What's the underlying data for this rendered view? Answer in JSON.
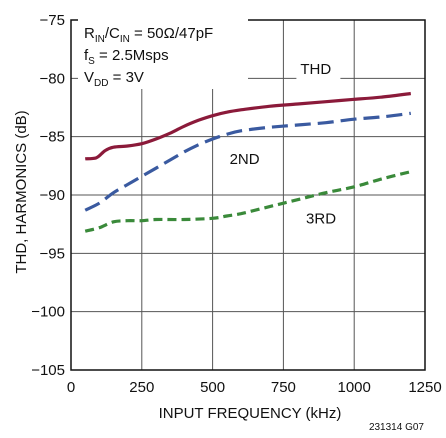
{
  "chart_data": {
    "type": "line",
    "title": "",
    "xlabel": "INPUT FREQUENCY (kHz)",
    "ylabel": "THD, HARMONICS (dB)",
    "xlim": [
      0,
      1250
    ],
    "ylim": [
      -105,
      -75
    ],
    "xticks": [
      0,
      250,
      500,
      750,
      1000,
      1250
    ],
    "yticks": [
      -105,
      -100,
      -95,
      -90,
      -85,
      -80,
      -75
    ],
    "xtick_labels": [
      "0",
      "250",
      "500",
      "750",
      "1000",
      "1250"
    ],
    "ytick_labels": [
      "−105",
      "−100",
      "−95",
      "−90",
      "−85",
      "−80",
      "−75"
    ],
    "grid": true,
    "conditions": {
      "line1": {
        "r": "R",
        "r_sub": "IN",
        "slash": "/C",
        "c_sub": "IN",
        "rest": " = 50Ω/47pF"
      },
      "line2": {
        "f": "f",
        "f_sub": "S",
        "rest": " = 2.5Msps"
      },
      "line3": {
        "v": "V",
        "v_sub": "DD",
        "rest": " = 3V"
      }
    },
    "figure_code": "231314 G07",
    "series": [
      {
        "name": "THD",
        "color": "#8b1a3a",
        "style": "solid",
        "x": [
          50,
          90,
          120,
          150,
          200,
          250,
          300,
          350,
          400,
          450,
          500,
          550,
          600,
          700,
          800,
          900,
          1000,
          1100,
          1200
        ],
        "y": [
          -86.9,
          -86.8,
          -86.2,
          -85.9,
          -85.8,
          -85.6,
          -85.2,
          -84.7,
          -84.1,
          -83.6,
          -83.2,
          -82.9,
          -82.7,
          -82.4,
          -82.2,
          -82.0,
          -81.8,
          -81.6,
          -81.3
        ]
      },
      {
        "name": "2ND",
        "color": "#3a5aa0",
        "style": "dashed",
        "x": [
          50,
          100,
          150,
          200,
          250,
          300,
          350,
          400,
          450,
          500,
          550,
          600,
          700,
          800,
          900,
          1000,
          1100,
          1200
        ],
        "y": [
          -91.3,
          -90.7,
          -89.8,
          -89.1,
          -88.4,
          -87.7,
          -87.0,
          -86.3,
          -85.7,
          -85.2,
          -84.8,
          -84.5,
          -84.2,
          -84.0,
          -83.8,
          -83.5,
          -83.3,
          -83.0
        ]
      },
      {
        "name": "3RD",
        "color": "#3a8a3a",
        "style": "dashed",
        "x": [
          50,
          100,
          150,
          200,
          250,
          300,
          400,
          500,
          550,
          600,
          700,
          800,
          900,
          1000,
          1100,
          1200
        ],
        "y": [
          -93.1,
          -92.8,
          -92.3,
          -92.2,
          -92.2,
          -92.1,
          -92.1,
          -92.0,
          -91.8,
          -91.6,
          -91.0,
          -90.4,
          -89.8,
          -89.3,
          -88.6,
          -88.0
        ]
      }
    ],
    "series_labels": {
      "THD": {
        "text": "THD",
        "x": 810,
        "y": -79.2
      },
      "2ND": {
        "text": "2ND",
        "x": 560,
        "y": -86.9
      },
      "3RD": {
        "text": "3RD",
        "x": 830,
        "y": -92.0
      }
    }
  }
}
